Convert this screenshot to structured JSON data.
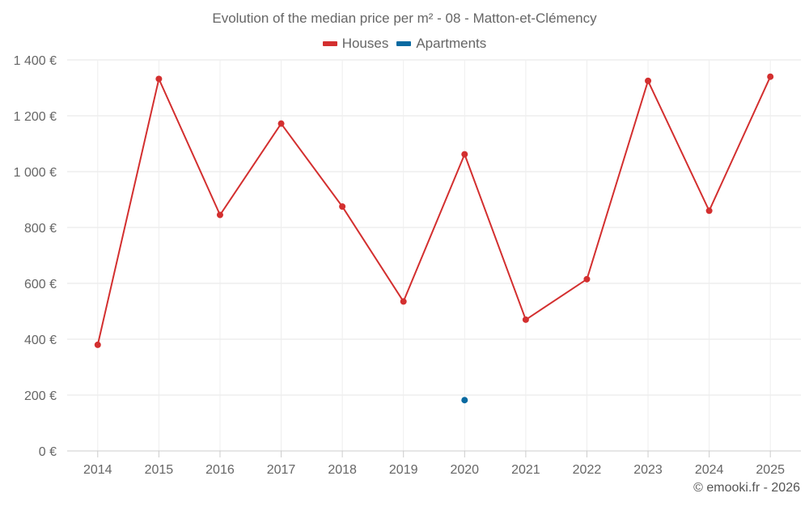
{
  "chart_data": {
    "type": "line",
    "title": "Evolution of the median price per m² - 08 - Matton-et-Clémency",
    "categories": [
      "2014",
      "2015",
      "2016",
      "2017",
      "2018",
      "2019",
      "2020",
      "2021",
      "2022",
      "2023",
      "2024",
      "2025"
    ],
    "series": [
      {
        "name": "Houses",
        "color": "#d32f2f",
        "values": [
          380,
          1332,
          845,
          1172,
          875,
          535,
          1062,
          470,
          615,
          1325,
          860,
          1340
        ]
      },
      {
        "name": "Apartments",
        "color": "#0a6aa1",
        "values": [
          null,
          null,
          null,
          null,
          null,
          null,
          182,
          null,
          null,
          null,
          null,
          null
        ]
      }
    ],
    "y_ticks": [
      {
        "value": 0,
        "label": "0 €"
      },
      {
        "value": 200,
        "label": "200 €"
      },
      {
        "value": 400,
        "label": "400 €"
      },
      {
        "value": 600,
        "label": "600 €"
      },
      {
        "value": 800,
        "label": "800 €"
      },
      {
        "value": 1000,
        "label": "1 000 €"
      },
      {
        "value": 1200,
        "label": "1 200 €"
      },
      {
        "value": 1400,
        "label": "1 400 €"
      }
    ],
    "ylim": [
      0,
      1400
    ],
    "xlabel": "",
    "ylabel": "",
    "grid": true,
    "legend_position": "top-center"
  },
  "credit": "© emooki.fr - 2026"
}
